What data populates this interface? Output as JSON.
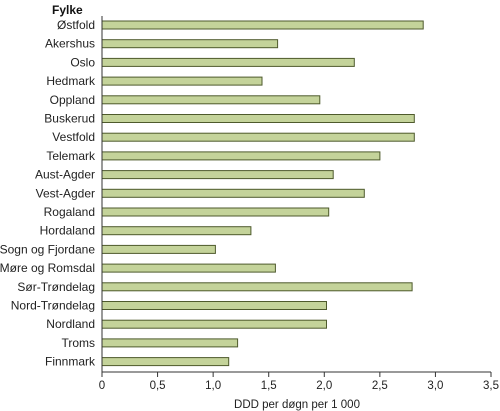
{
  "chart_data": {
    "type": "bar",
    "orientation": "horizontal",
    "category_header": "Fylke",
    "categories": [
      "Østfold",
      "Akershus",
      "Oslo",
      "Hedmark",
      "Oppland",
      "Buskerud",
      "Vestfold",
      "Telemark",
      "Aust-Agder",
      "Vest-Agder",
      "Rogaland",
      "Hordaland",
      "Sogn og Fjordane",
      "Møre og Romsdal",
      "Sør-Trøndelag",
      "Nord-Trøndelag",
      "Nordland",
      "Troms",
      "Finnmark"
    ],
    "values": [
      2.89,
      1.58,
      2.27,
      1.44,
      1.96,
      2.81,
      2.81,
      2.5,
      2.08,
      2.36,
      2.04,
      1.34,
      1.02,
      1.56,
      2.79,
      2.02,
      2.02,
      1.22,
      1.14
    ],
    "xlabel": "DDD per døgn per 1 000",
    "ylabel": "",
    "xlim": [
      0,
      3.5
    ],
    "x_ticks": [
      "0",
      "0,5",
      "1,0",
      "1,5",
      "2,0",
      "2,5",
      "3,0",
      "3,5"
    ],
    "grid": false,
    "colors": {
      "bar_fill": "#c4d39a",
      "bar_stroke": "#4e5a2c",
      "axis": "#333333"
    }
  }
}
